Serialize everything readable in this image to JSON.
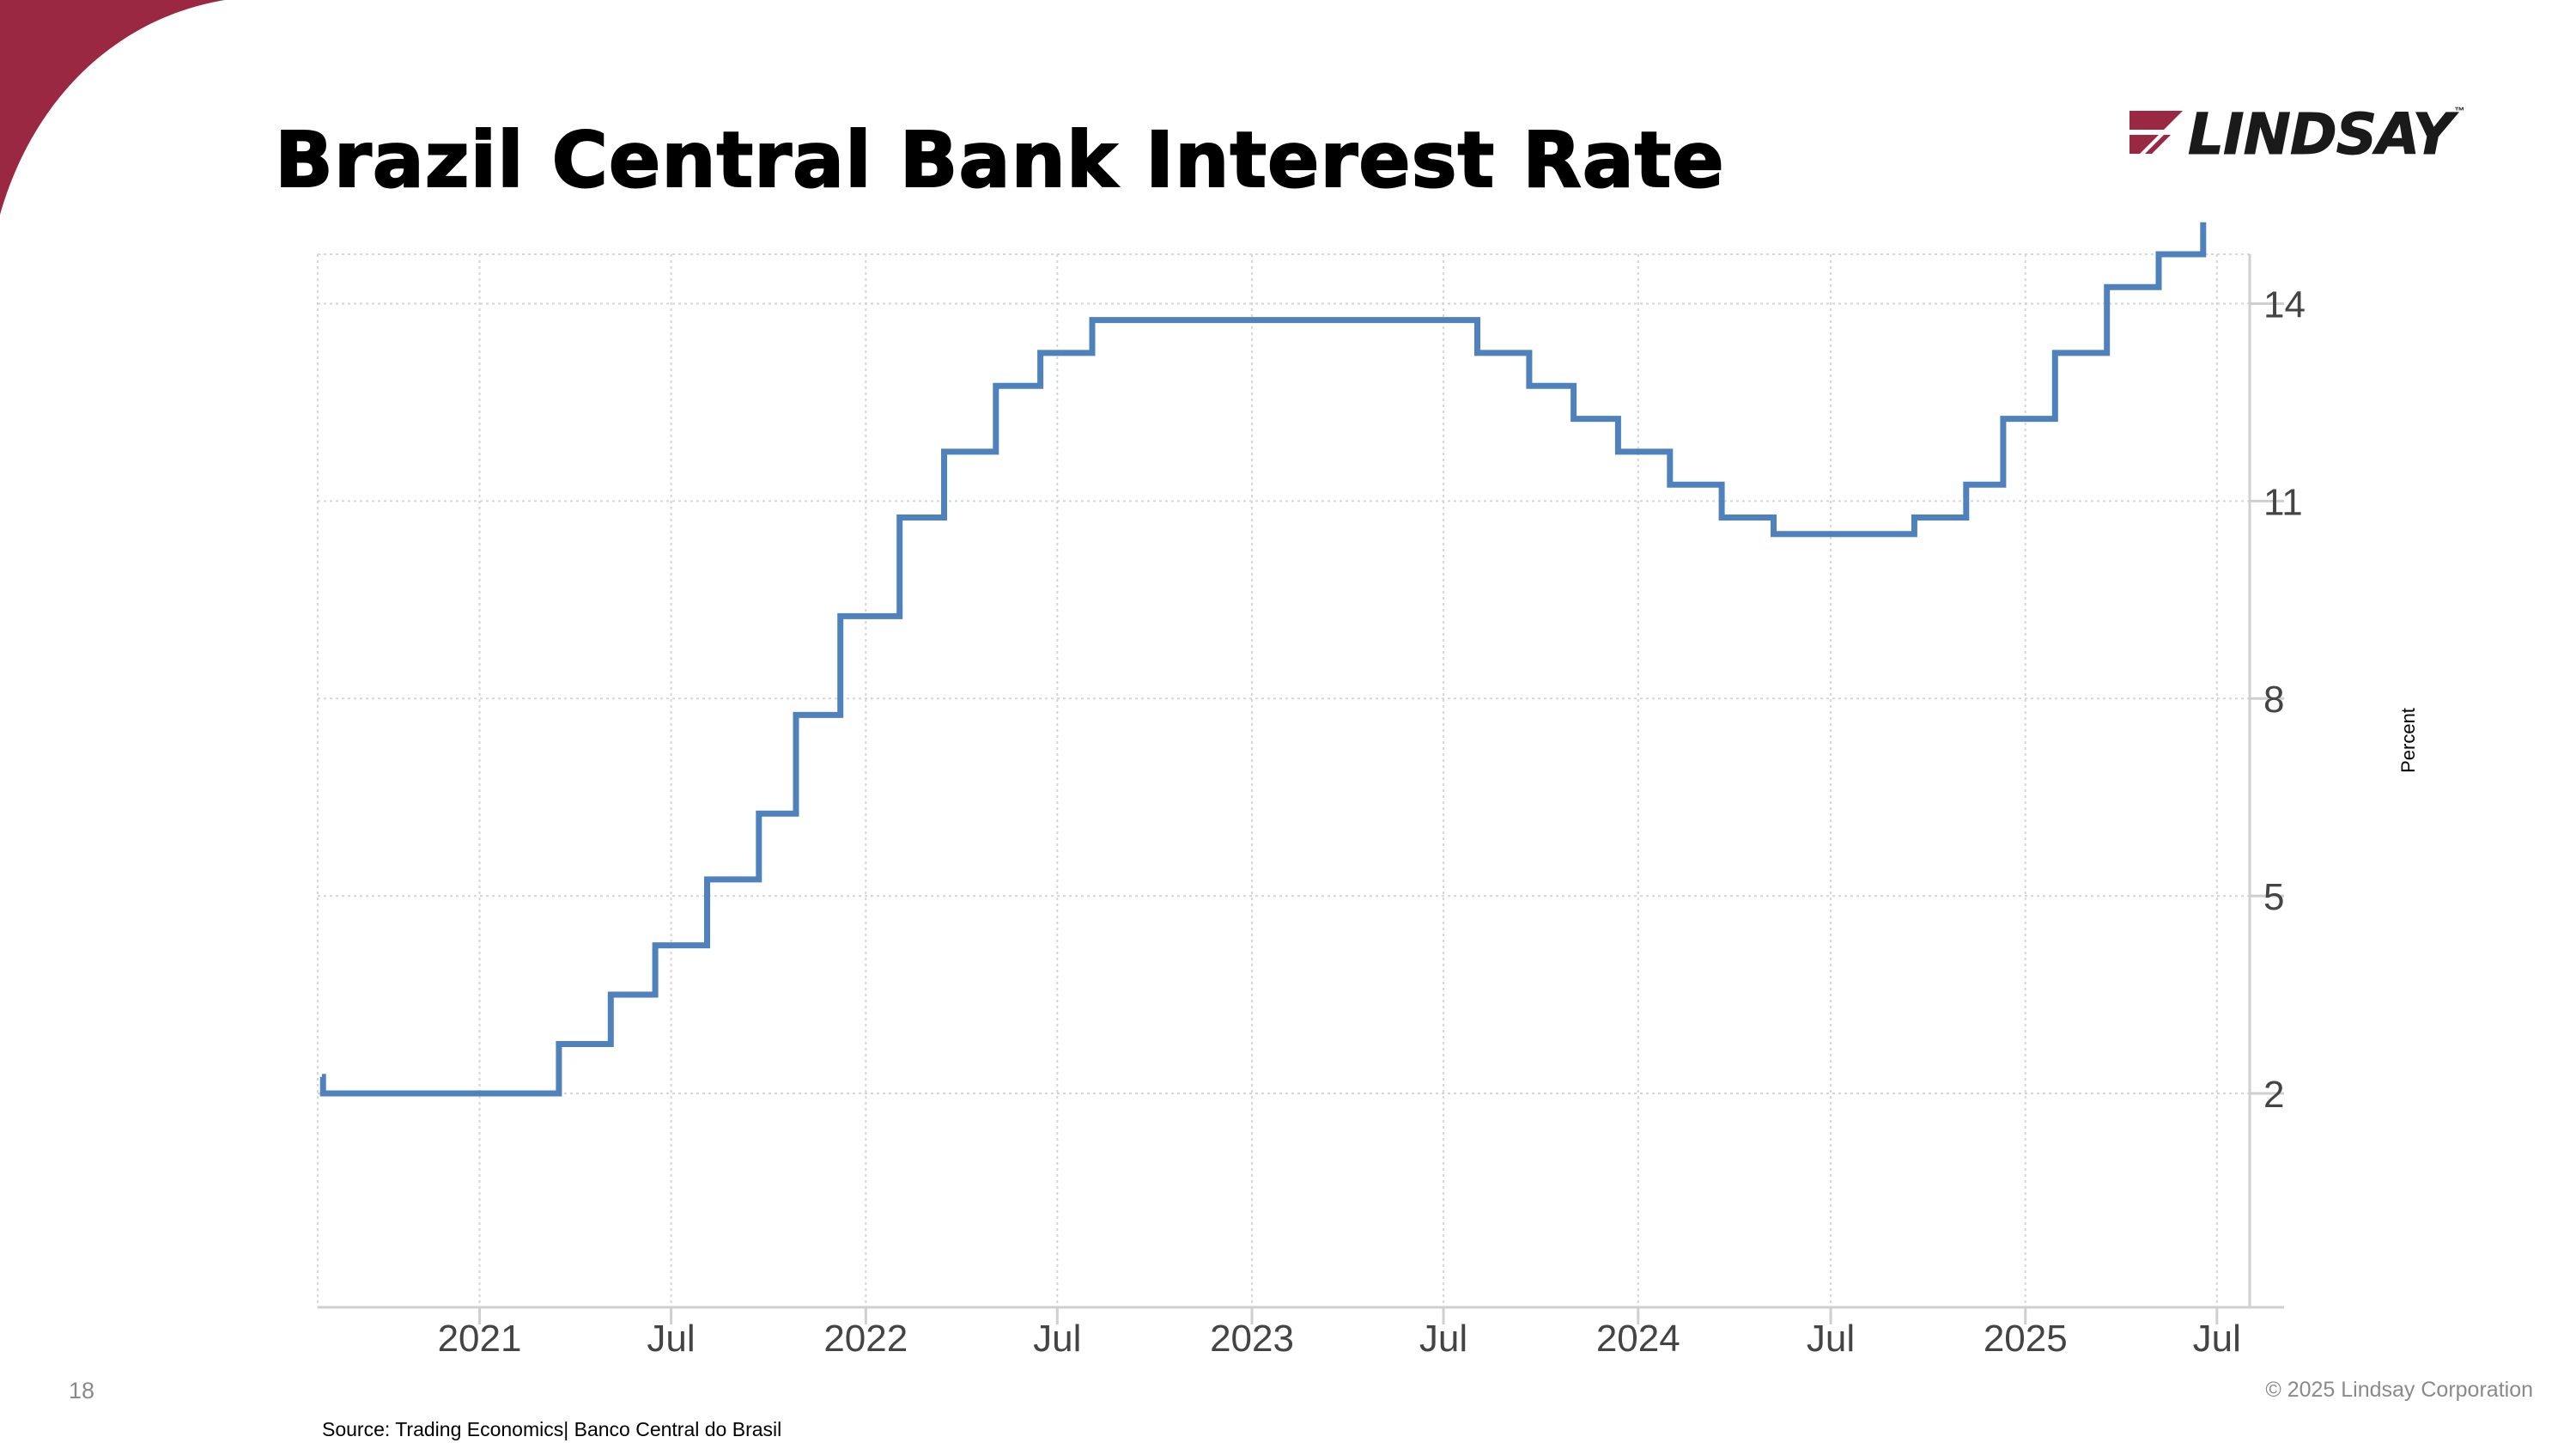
{
  "slide": {
    "title": "Brazil Central Bank Interest Rate",
    "page_number": "18",
    "copyright": "© 2025 Lindsay Corporation",
    "source": "Source: Trading Economics| Banco Central do Brasil"
  },
  "logo": {
    "text": "LINDSAY",
    "tm": "™",
    "mark_icon": "lindsay-stripes-icon"
  },
  "colors": {
    "accent": "#9b2842",
    "line": "#4f81bd",
    "grid": "#d6d6d6",
    "axis_text": "#444444"
  },
  "chart_data": {
    "type": "line",
    "step": true,
    "xlabel": "",
    "ylabel": "Percent",
    "y_axis_side": "right",
    "xlim": [
      "2020-08-01",
      "2025-08-01"
    ],
    "ylim": [
      -1.25,
      14.75
    ],
    "yticks": [
      2,
      5,
      8,
      11,
      14
    ],
    "ytick_labels": [
      "2",
      "5",
      "8",
      "11",
      "14"
    ],
    "xticks": [
      "2021-01-01",
      "2021-07-01",
      "2022-01-01",
      "2022-07-01",
      "2023-01-01",
      "2023-07-01",
      "2024-01-01",
      "2024-07-01",
      "2025-01-01",
      "2025-07-01"
    ],
    "xtick_labels": [
      "2021",
      "Jul",
      "2022",
      "Jul",
      "2023",
      "Jul",
      "2024",
      "Jul",
      "2025",
      "Jul"
    ],
    "grid": true,
    "series": [
      {
        "x": [
          "2020-08-05",
          "2020-08-06",
          "2021-03-17",
          "2021-05-05",
          "2021-06-16",
          "2021-08-04",
          "2021-09-22",
          "2021-10-27",
          "2021-12-08",
          "2022-02-02",
          "2022-03-16",
          "2022-05-04",
          "2022-06-15",
          "2022-08-03",
          "2023-08-02",
          "2023-09-20",
          "2023-11-01",
          "2023-12-13",
          "2024-01-31",
          "2024-03-20",
          "2024-05-08",
          "2024-09-18",
          "2024-11-06",
          "2024-12-11",
          "2025-01-29",
          "2025-03-19",
          "2025-05-07",
          "2025-06-18"
        ],
        "y": [
          2.25,
          2.0,
          2.75,
          3.5,
          4.25,
          5.25,
          6.25,
          7.75,
          9.25,
          10.75,
          11.75,
          12.75,
          13.25,
          13.75,
          13.25,
          12.75,
          12.25,
          11.75,
          11.25,
          10.75,
          10.5,
          10.75,
          11.25,
          12.25,
          13.25,
          14.25,
          14.75,
          15.0
        ]
      }
    ]
  }
}
